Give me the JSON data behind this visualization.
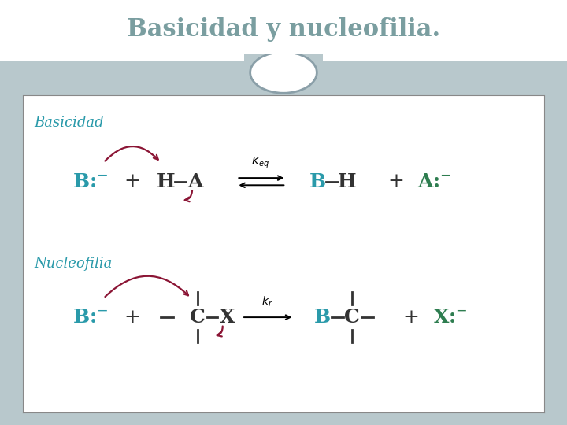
{
  "title": "Basicidad y nucleofilia.",
  "title_color": "#7a9ea0",
  "title_fontsize": 22,
  "section_bg": "#b8c8cc",
  "label_basicidad": "Basicidad",
  "label_nucleofilia": "Nucleofilia",
  "teal": "#2a9aaa",
  "green": "#2e7d50",
  "bond_color": "#333333",
  "arrow_color": "#8b1535",
  "white": "#ffffff",
  "border_color": "#aaaaaa"
}
